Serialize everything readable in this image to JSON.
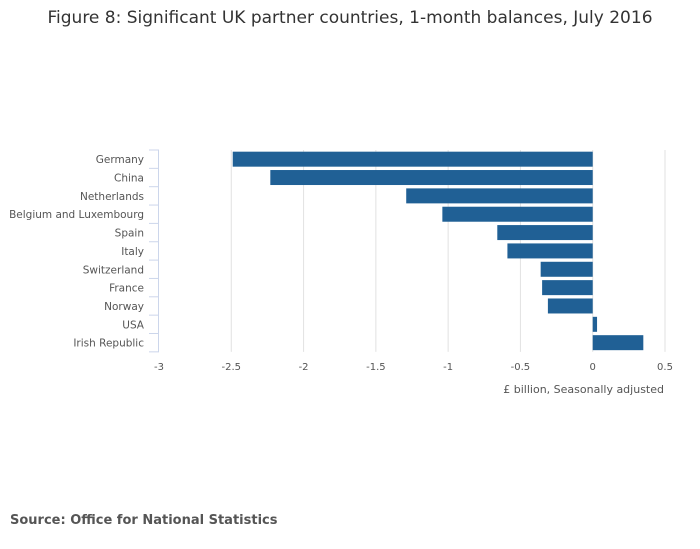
{
  "source": "Source: Office for National Statistics",
  "chart_data": {
    "type": "bar",
    "orientation": "horizontal",
    "title": "Figure 8: Significant UK partner countries, 1-month balances, July 2016",
    "categories": [
      "Germany",
      "China",
      "Netherlands",
      "Belgium and Luxembourg",
      "Spain",
      "Italy",
      "Switzerland",
      "France",
      "Norway",
      "USA",
      "Irish Republic"
    ],
    "values": [
      -2.49,
      -2.23,
      -1.29,
      -1.04,
      -0.66,
      -0.59,
      -0.36,
      -0.35,
      -0.31,
      0.03,
      0.35
    ],
    "xlabel": "£ billion, Seasonally adjusted",
    "ylabel": "",
    "xlim": [
      -3,
      0.5
    ],
    "xticks": [
      -3,
      -2.5,
      -2,
      -1.5,
      -1,
      -0.5,
      0,
      0.5
    ],
    "xtick_labels": [
      "-3",
      "-2.5",
      "-2",
      "-1.5",
      "-1",
      "-0.5",
      "0",
      "0.5"
    ],
    "grid": true,
    "bar_color": "#206095"
  }
}
